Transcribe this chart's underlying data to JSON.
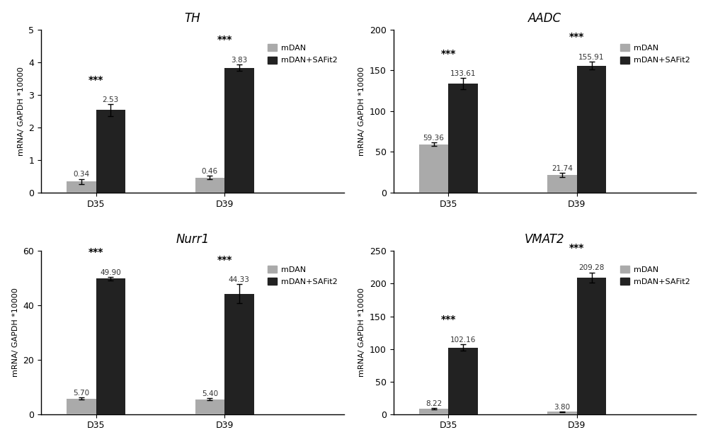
{
  "panels": [
    {
      "title": "TH",
      "ylabel": "mRNA/ GAPDH *10000",
      "ylim": [
        0,
        5
      ],
      "yticks": [
        0,
        1,
        2,
        3,
        4,
        5
      ],
      "groups": [
        "D35",
        "D39"
      ],
      "mdan_values": [
        0.34,
        0.46
      ],
      "safit2_values": [
        2.53,
        3.83
      ],
      "mdan_errors": [
        0.08,
        0.05
      ],
      "safit2_errors": [
        0.18,
        0.1
      ],
      "sig_labels": [
        "***",
        "***"
      ],
      "value_label_mdan": [
        "0.34",
        "0.46"
      ],
      "value_label_safit2": [
        "2.53",
        "3.83"
      ]
    },
    {
      "title": "AADC",
      "ylabel": "mRNA/ GAPDH *10000",
      "ylim": [
        0,
        200
      ],
      "yticks": [
        0,
        50,
        100,
        150,
        200
      ],
      "groups": [
        "D35",
        "D39"
      ],
      "mdan_values": [
        59.36,
        21.74
      ],
      "safit2_values": [
        133.61,
        155.91
      ],
      "mdan_errors": [
        2.0,
        2.5
      ],
      "safit2_errors": [
        7.0,
        5.0
      ],
      "sig_labels": [
        "***",
        "***"
      ],
      "value_label_mdan": [
        "59.36",
        "21.74"
      ],
      "value_label_safit2": [
        "133.61",
        "155.91"
      ]
    },
    {
      "title": "Nurr1",
      "ylabel": "mRNA/ GAPDH *10000",
      "ylim": [
        0,
        60
      ],
      "yticks": [
        0,
        20,
        40,
        60
      ],
      "groups": [
        "D35",
        "D39"
      ],
      "mdan_values": [
        5.7,
        5.4
      ],
      "safit2_values": [
        49.9,
        44.33
      ],
      "mdan_errors": [
        0.4,
        0.4
      ],
      "safit2_errors": [
        0.6,
        3.5
      ],
      "sig_labels": [
        "***",
        "***"
      ],
      "value_label_mdan": [
        "5.70",
        "5.40"
      ],
      "value_label_safit2": [
        "49.90",
        "44.33"
      ]
    },
    {
      "title": "VMAT2",
      "ylabel": "mRNA/ GAPDH *10000",
      "ylim": [
        0,
        250
      ],
      "yticks": [
        0,
        50,
        100,
        150,
        200,
        250
      ],
      "groups": [
        "D35",
        "D39"
      ],
      "mdan_values": [
        8.22,
        3.8
      ],
      "safit2_values": [
        102.16,
        209.28
      ],
      "mdan_errors": [
        1.0,
        0.5
      ],
      "safit2_errors": [
        5.0,
        8.0
      ],
      "sig_labels": [
        "***",
        "***"
      ],
      "value_label_mdan": [
        "8.22",
        "3.80"
      ],
      "value_label_safit2": [
        "102.16",
        "209.28"
      ]
    }
  ],
  "mdan_color": "#aaaaaa",
  "safit2_color": "#222222",
  "bar_width": 0.32,
  "group_centers": [
    0.8,
    2.2
  ],
  "xlim": [
    0.2,
    3.5
  ],
  "legend_labels": [
    "mDAN",
    "mDAN+SAFit2"
  ],
  "background_color": "#ffffff"
}
